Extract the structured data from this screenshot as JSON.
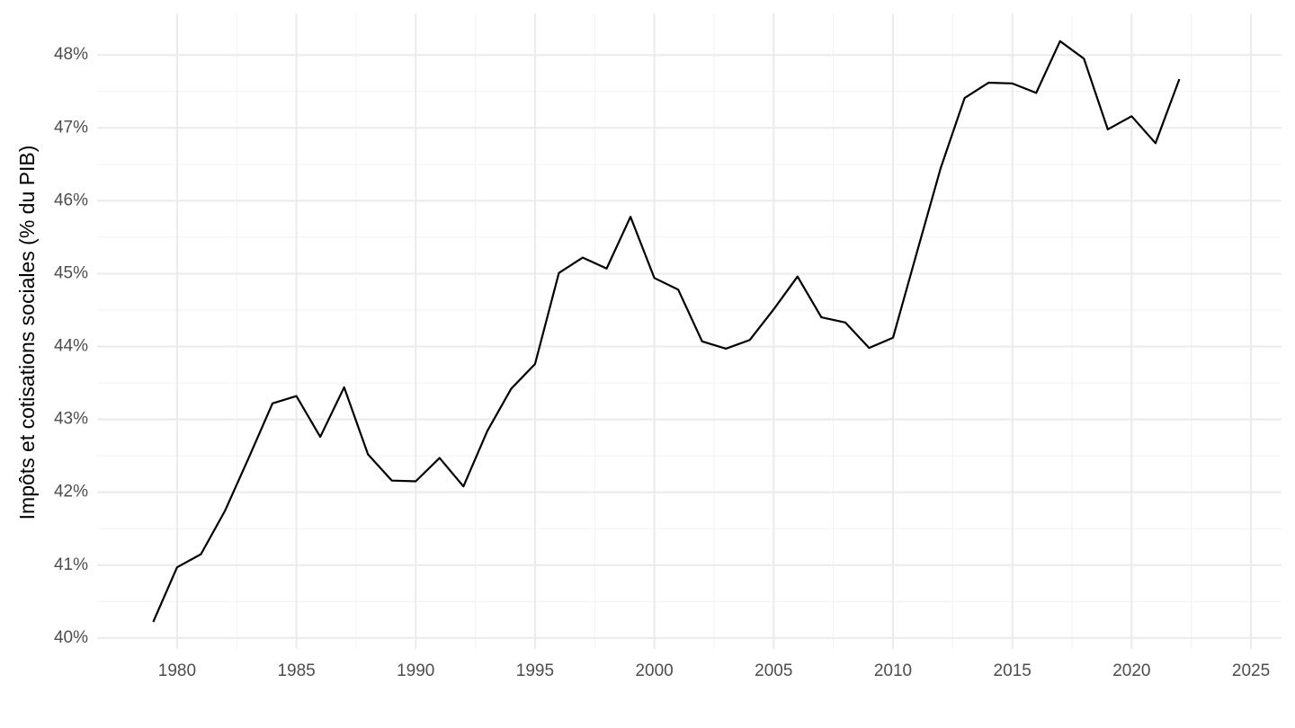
{
  "chart_data": {
    "type": "line",
    "y_label": "Impôts et cotisations sociales (% du PIB)",
    "x": [
      1979,
      1980,
      1981,
      1982,
      1983,
      1984,
      1985,
      1986,
      1987,
      1988,
      1989,
      1990,
      1991,
      1992,
      1993,
      1994,
      1995,
      1996,
      1997,
      1998,
      1999,
      2000,
      2001,
      2002,
      2003,
      2004,
      2005,
      2006,
      2007,
      2008,
      2009,
      2010,
      2011,
      2012,
      2013,
      2014,
      2015,
      2016,
      2017,
      2018,
      2019,
      2020,
      2021,
      2022
    ],
    "series": [
      {
        "color": "#000000",
        "values": [
          40.22,
          40.97,
          41.15,
          41.74,
          42.47,
          43.22,
          43.32,
          42.76,
          43.44,
          42.52,
          42.16,
          42.15,
          42.47,
          42.08,
          42.84,
          43.42,
          43.76,
          45.01,
          45.22,
          45.07,
          45.78,
          44.94,
          44.78,
          44.07,
          43.97,
          44.09,
          44.51,
          44.96,
          44.4,
          44.33,
          43.98,
          44.12,
          45.29,
          46.45,
          47.41,
          47.62,
          47.61,
          47.48,
          48.19,
          47.95,
          46.98,
          47.16,
          46.79,
          47.67
        ]
      }
    ],
    "xlim": [
      1976.65,
      2026.28
    ],
    "xticks": [
      1980,
      1985,
      1990,
      1995,
      2000,
      2005,
      2010,
      2015,
      2020,
      2025
    ],
    "ylim": [
      39.85,
      48.57
    ],
    "yticks": [
      {
        "value": 40,
        "label": "40%"
      },
      {
        "value": 41,
        "label": "41%"
      },
      {
        "value": 42,
        "label": "42%"
      },
      {
        "value": 43,
        "label": "43%"
      },
      {
        "value": 44,
        "label": "44%"
      },
      {
        "value": 45,
        "label": "45%"
      },
      {
        "value": 46,
        "label": "46%"
      },
      {
        "value": 47,
        "label": "47%"
      },
      {
        "value": 48,
        "label": "48%"
      }
    ],
    "grid": true
  }
}
